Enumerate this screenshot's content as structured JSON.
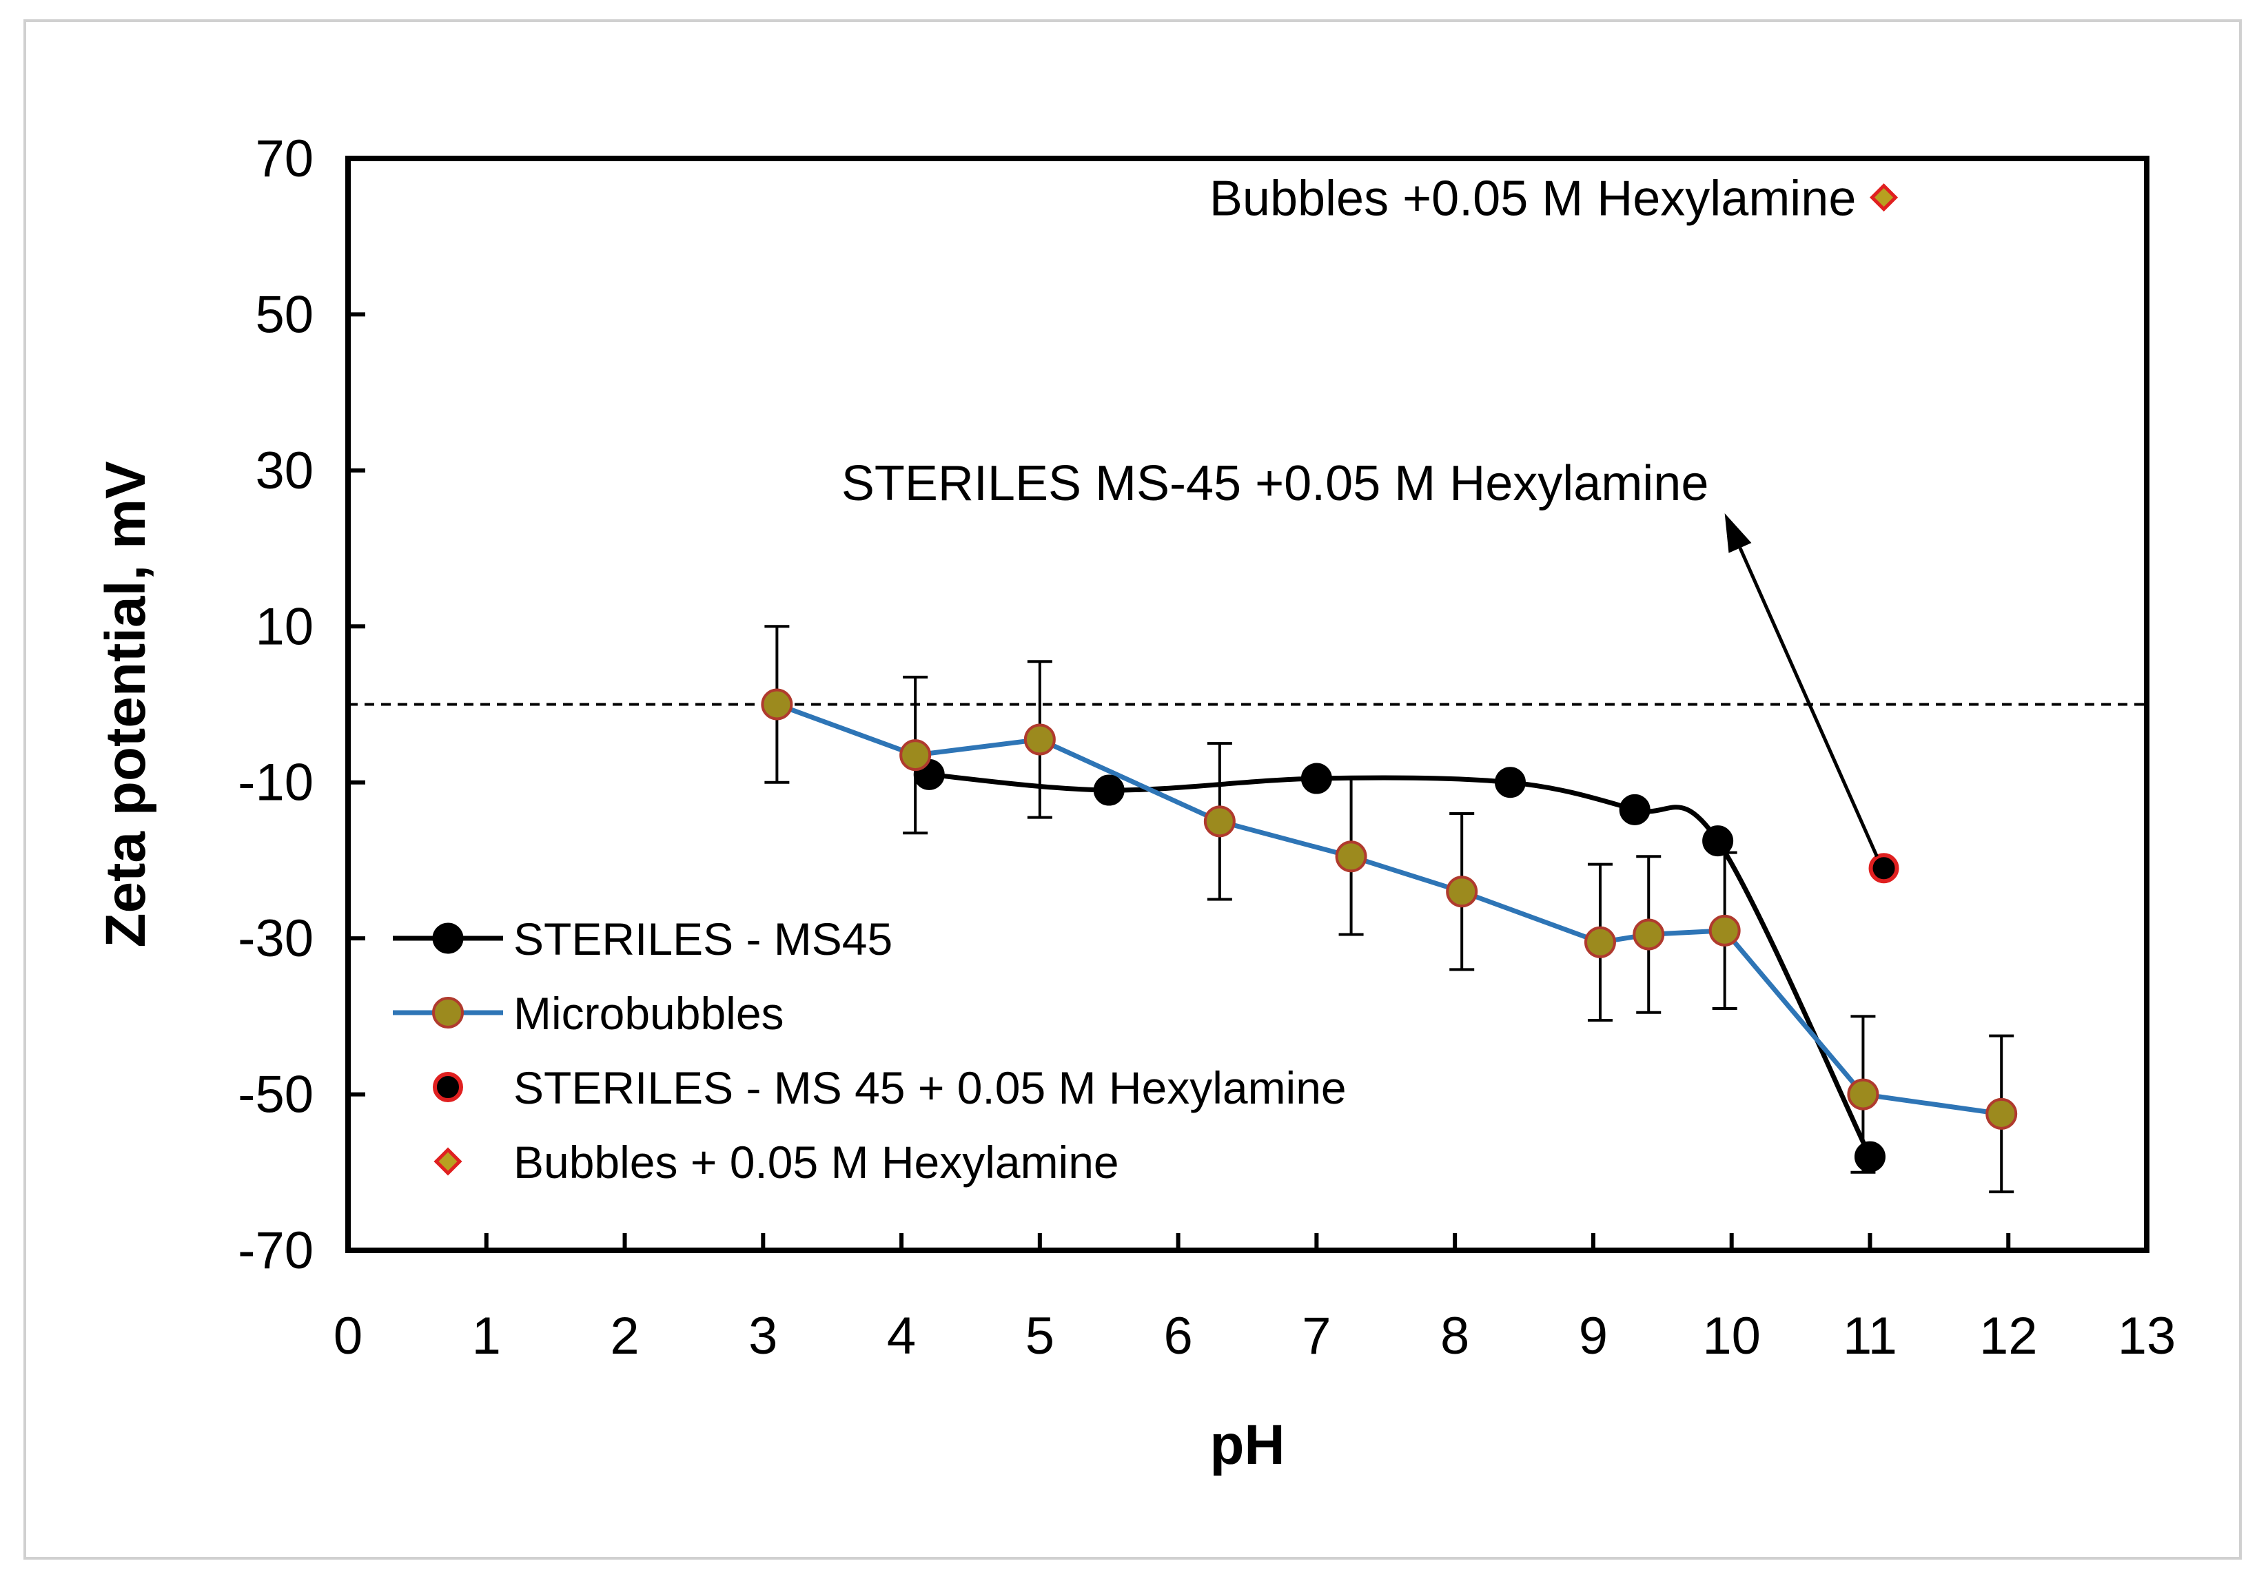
{
  "chart_data": {
    "type": "line",
    "xlabel": "pH",
    "ylabel": "Zeta potential, mV",
    "xlim": [
      0,
      13
    ],
    "ylim": [
      -70,
      70
    ],
    "xticks": [
      0,
      1,
      2,
      3,
      4,
      5,
      6,
      7,
      8,
      9,
      10,
      11,
      12,
      13
    ],
    "yticks": [
      70,
      50,
      30,
      10,
      -10,
      -30,
      -50,
      -70
    ],
    "zero_line": 0,
    "series": [
      {
        "name": "STERILES - MS45",
        "color": "#000000",
        "marker": "circle",
        "marker_fill": "#000000",
        "marker_edge": "#000000",
        "x": [
          4.2,
          5.5,
          7.0,
          8.4,
          9.3,
          9.9,
          11.0
        ],
        "y": [
          -9.0,
          -11.0,
          -9.5,
          -10.0,
          -13.5,
          -17.5,
          -58.0
        ]
      },
      {
        "name": "Microbubbles",
        "color": "#2e75b6",
        "marker": "circle",
        "marker_fill": "#9c8a1e",
        "marker_edge": "#b03a2e",
        "x": [
          3.1,
          4.1,
          5.0,
          6.3,
          7.25,
          8.05,
          9.05,
          9.4,
          9.95,
          10.95,
          11.95
        ],
        "y": [
          0.0,
          -6.5,
          -4.5,
          -15.0,
          -19.5,
          -24.0,
          -30.5,
          -29.5,
          -29.0,
          -50.0,
          -52.5
        ],
        "error": [
          10,
          10,
          10,
          10,
          10,
          10,
          10,
          10,
          10,
          10,
          10
        ]
      },
      {
        "name": "STERILES - MS 45 + 0.05 M Hexylamine",
        "color": "none",
        "marker": "circle",
        "marker_fill": "#000000",
        "marker_edge": "#e02020",
        "x": [
          11.1
        ],
        "y": [
          -21.0
        ]
      },
      {
        "name": "Bubbles + 0.05 M Hexylamine",
        "color": "none",
        "marker": "diamond",
        "marker_fill": "#b8a020",
        "marker_edge": "#e02020",
        "x": [
          11.1
        ],
        "y": [
          65.0
        ]
      }
    ],
    "annotations": [
      {
        "text": "Bubbles +0.05 M Hexylamine",
        "x": 10.9,
        "y": 65.0,
        "anchor": "end"
      },
      {
        "text": "STERILES MS-45 +0.05 M Hexylamine",
        "x": 6.7,
        "y": 28.5,
        "anchor": "middle"
      }
    ],
    "arrow": {
      "from": [
        11.05,
        -19.5
      ],
      "to": [
        9.95,
        24.5
      ]
    },
    "legend_position": "bottom-left"
  }
}
